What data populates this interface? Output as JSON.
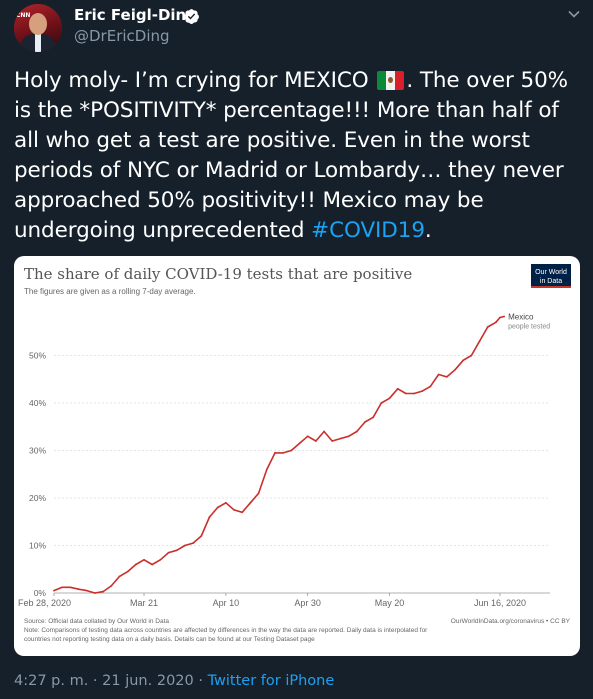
{
  "author": {
    "name": "Eric Feigl-Ding",
    "handle": "@DrEricDing",
    "avatar_tag": "CNN"
  },
  "tweet": {
    "text_before": "Holy moly- I’m crying for MEXICO ",
    "text_after": ". The over 50% is the *POSITIVITY* percentage!!! More than half of all who get a test are positive. Even in the worst periods of NYC or Madrid or Lombardy… they never approached 50% positivity!! Mexico may be undergoing unprecedented ",
    "hashtag": "#COVID19",
    "text_end": ".",
    "flag": "mexico-flag-emoji"
  },
  "meta": {
    "time": "4:27 p. m.",
    "sep1": " · ",
    "date": "21 jun. 2020",
    "sep2": " · ",
    "source": "Twitter for iPhone"
  },
  "chart_data": {
    "type": "line",
    "title": "The share of daily COVID-19 tests that are positive",
    "subtitle": "The figures are given as a rolling 7-day average.",
    "logo": [
      "Our World",
      "in Data"
    ],
    "series": [
      {
        "name": "Mexico",
        "sublabel": "people tested",
        "color": "#c9302c",
        "x": [
          "2020-02-28",
          "2020-03-01",
          "2020-03-03",
          "2020-03-05",
          "2020-03-07",
          "2020-03-09",
          "2020-03-11",
          "2020-03-13",
          "2020-03-15",
          "2020-03-17",
          "2020-03-19",
          "2020-03-21",
          "2020-03-23",
          "2020-03-25",
          "2020-03-27",
          "2020-03-29",
          "2020-03-31",
          "2020-04-02",
          "2020-04-04",
          "2020-04-06",
          "2020-04-08",
          "2020-04-10",
          "2020-04-12",
          "2020-04-14",
          "2020-04-16",
          "2020-04-18",
          "2020-04-20",
          "2020-04-22",
          "2020-04-24",
          "2020-04-26",
          "2020-04-28",
          "2020-04-30",
          "2020-05-02",
          "2020-05-04",
          "2020-05-06",
          "2020-05-08",
          "2020-05-10",
          "2020-05-12",
          "2020-05-14",
          "2020-05-16",
          "2020-05-18",
          "2020-05-20",
          "2020-05-22",
          "2020-05-24",
          "2020-05-26",
          "2020-05-28",
          "2020-05-30",
          "2020-06-01",
          "2020-06-03",
          "2020-06-05",
          "2020-06-07",
          "2020-06-09",
          "2020-06-11",
          "2020-06-13",
          "2020-06-15",
          "2020-06-16",
          "2020-06-17"
        ],
        "values": [
          0.5,
          1.2,
          1.2,
          0.8,
          0.5,
          0,
          0.3,
          1.5,
          3.5,
          4.5,
          6,
          7,
          6,
          7,
          8.5,
          9,
          10,
          10.5,
          12,
          16,
          18,
          19,
          17.5,
          17,
          19,
          21,
          26,
          29.5,
          29.5,
          30,
          31.5,
          33,
          32,
          34,
          32,
          32.5,
          33,
          34,
          36,
          37,
          40,
          41,
          43,
          42,
          42,
          42.5,
          43.5,
          46,
          45.5,
          47,
          49,
          50,
          53,
          56,
          57,
          58,
          58.2
        ]
      }
    ],
    "xlabel": "",
    "ylabel": "",
    "ylim": [
      0,
      60
    ],
    "yticks": [
      0,
      10,
      20,
      30,
      40,
      50
    ],
    "ytick_labels": [
      "0%",
      "10%",
      "20%",
      "30%",
      "40%",
      "50%"
    ],
    "xticks": [
      "2020-02-28",
      "2020-03-21",
      "2020-04-10",
      "2020-04-30",
      "2020-05-20",
      "2020-06-16"
    ],
    "xtick_labels": [
      "Feb 28, 2020",
      "Mar 21",
      "Apr 10",
      "Apr 30",
      "May 20",
      "Jun 16, 2020"
    ],
    "grid": true,
    "source_line": "Source: Official data collated by Our World in Data",
    "note_line1": "Note: Comparisons of testing data across countries are affected by differences in the way the data are reported. Daily data is interpolated for",
    "note_line2": "countries not reporting testing data on a daily basis. Details can be found at our Testing Dataset page",
    "credit": "OurWorldInData.org/coronavirus • CC BY"
  }
}
